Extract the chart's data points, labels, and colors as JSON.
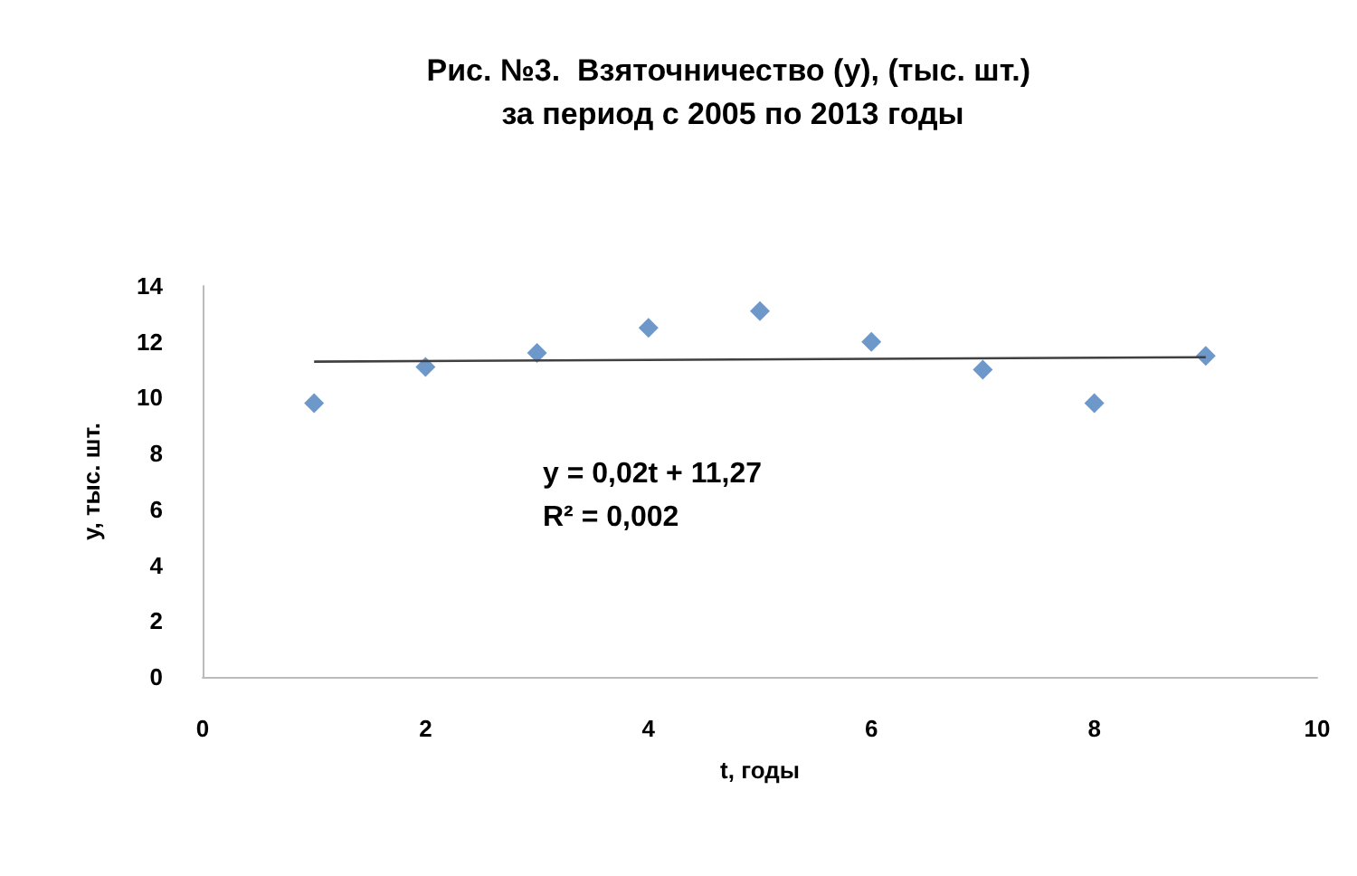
{
  "chart_data": {
    "type": "scatter",
    "title": "Рис. №3.  Взяточничество (y), (тыс. шт.) за период с 2005 по 2013 годы",
    "xlabel": "t, годы",
    "ylabel": "y, тыс. шт.",
    "x": [
      1,
      2,
      3,
      4,
      5,
      6,
      7,
      8,
      9
    ],
    "series": [
      {
        "color": "#4a7ebb",
        "values": [
          9.8,
          11.1,
          11.6,
          12.5,
          13.1,
          12.0,
          11.0,
          9.8,
          11.5
        ]
      },
      {
        "type": "line",
        "color": "#404040",
        "x": [
          1,
          9
        ],
        "values": [
          11.29,
          11.45
        ],
        "marker": "none"
      }
    ],
    "annotations": [
      "y = 0,02t + 11,27",
      "R² = 0,002"
    ],
    "xlim": [
      0,
      10
    ],
    "xticks": [
      0,
      2,
      4,
      6,
      8,
      10
    ],
    "ylim": [
      0,
      14
    ],
    "yticks": [
      0,
      2,
      4,
      6,
      8,
      10,
      12,
      14
    ],
    "grid": false,
    "marker": "diamond"
  }
}
